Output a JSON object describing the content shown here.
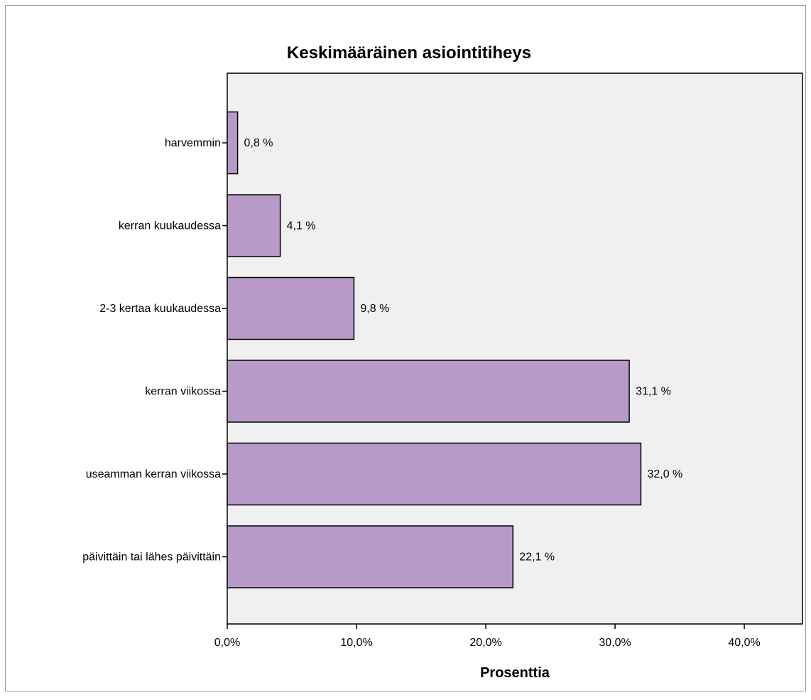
{
  "chart_data": {
    "type": "bar",
    "orientation": "horizontal",
    "title": "Keskimääräinen asiointitiheys",
    "xlabel": "Prosenttia",
    "ylabel": "",
    "xlim": [
      0,
      44.5
    ],
    "x_ticks": [
      0,
      10,
      20,
      30,
      40
    ],
    "x_tick_labels": [
      "0,0%",
      "10,0%",
      "20,0%",
      "30,0%",
      "40,0%"
    ],
    "grid": false,
    "categories": [
      "harvemmin",
      "kerran kuukaudessa",
      "2-3 kertaa kuukaudessa",
      "kerran viikossa",
      "useamman kerran viikossa",
      "päivittäin tai lähes päivittäin"
    ],
    "values": [
      0.8,
      4.1,
      9.8,
      31.1,
      32.0,
      22.1
    ],
    "data_labels": [
      "0,8 %",
      "4,1 %",
      "9,8 %",
      "31,1 %",
      "32,0 %",
      "22,1 %"
    ],
    "colors": {
      "bar_fill": "#b89ac8",
      "bar_stroke": "#000000",
      "plot_background": "#f0f0f0",
      "page_background": "#ffffff"
    }
  }
}
